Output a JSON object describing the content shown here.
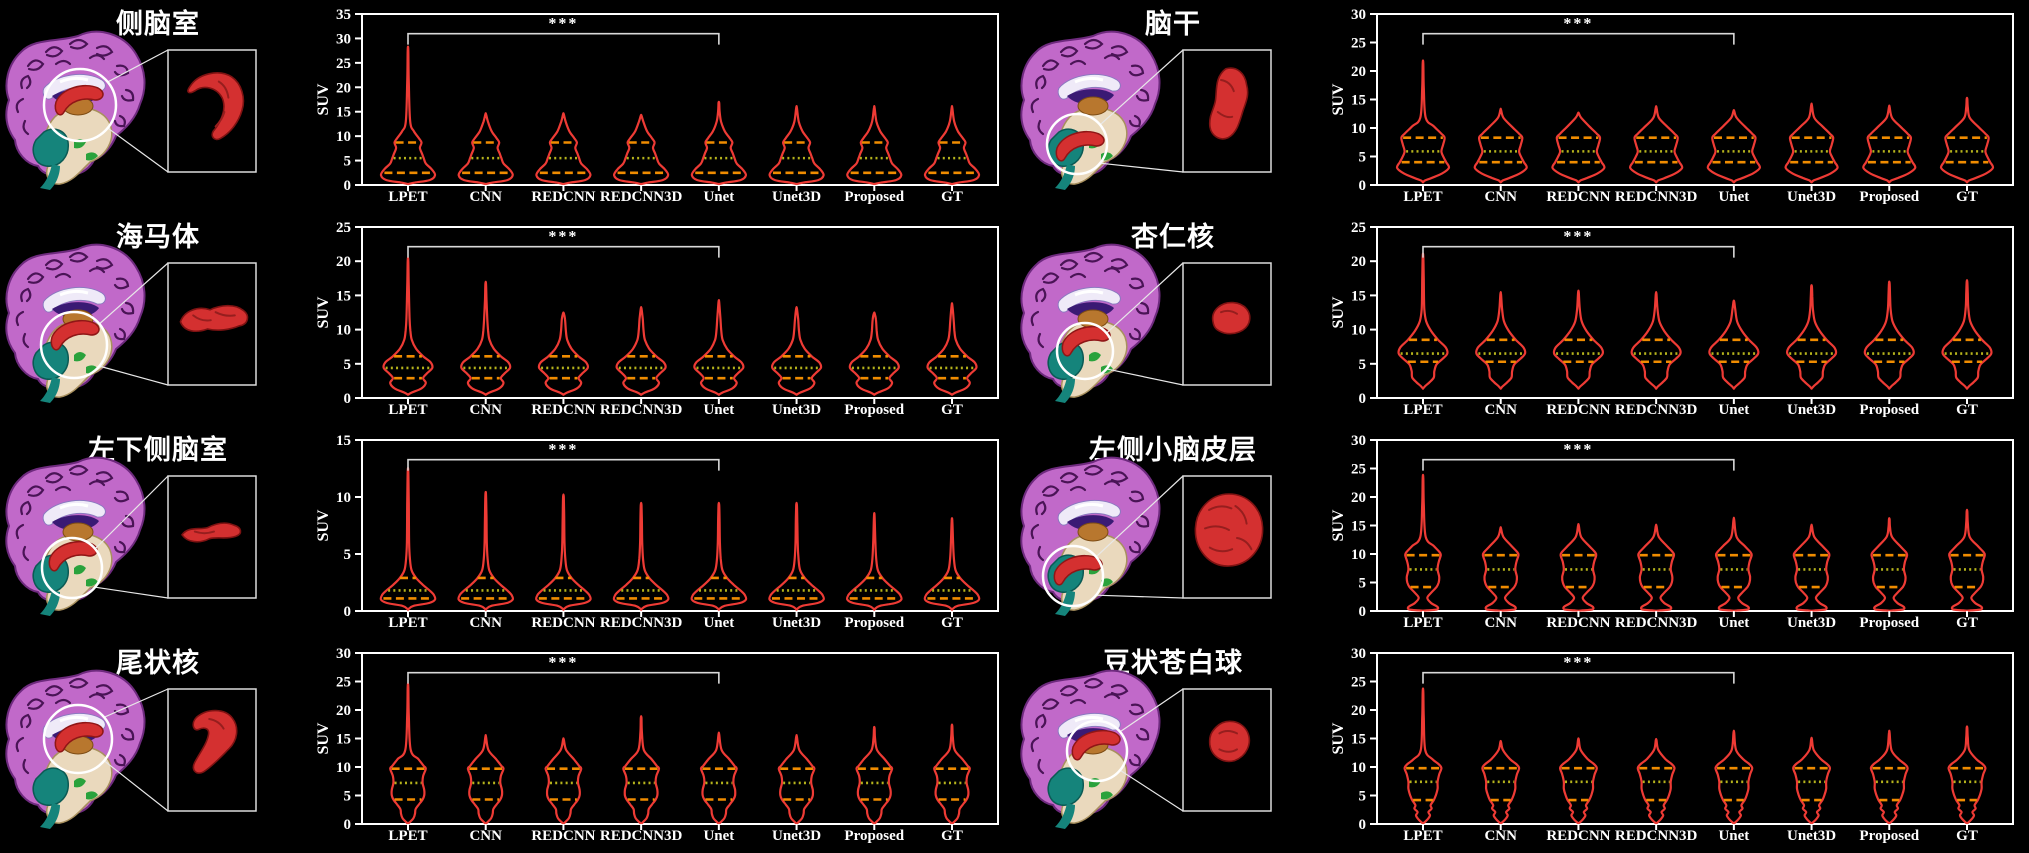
{
  "figure": {
    "background": "#000000",
    "methods": [
      "LPET",
      "CNN",
      "REDCNN",
      "REDCNN3D",
      "Unet",
      "Unet3D",
      "Proposed",
      "GT"
    ],
    "ylabel": "SUV",
    "significance_label": "***",
    "colors": {
      "violin": "#ee3b35",
      "quartile_lines": "#f08c00",
      "median_line": "#b5b31c",
      "axis_text": "#ffffff",
      "bracket": "#d9d9d9",
      "structure_highlight": "#d43030",
      "cortex": "#c169c9",
      "inset_border": "#dcdcdc"
    }
  },
  "chart_data": [
    {
      "type": "violin",
      "title": "侧脑室",
      "ylabel": "SUV",
      "ylim": [
        0,
        35
      ],
      "ytick_step": 5,
      "categories": [
        "LPET",
        "CNN",
        "REDCNN",
        "REDCNN3D",
        "Unet",
        "Unet3D",
        "Proposed",
        "GT"
      ],
      "max_values": [
        27.5,
        14.5,
        14.5,
        14.2,
        16.8,
        15.8,
        15.8,
        15.8
      ],
      "quartiles": {
        "q1": 2.5,
        "median": 5.5,
        "q3": 8.7
      },
      "annotation": {
        "label": "***",
        "from": "LPET",
        "to": "Unet"
      },
      "kde_profile": [
        [
          13,
          0.08
        ],
        [
          11,
          0.22
        ],
        [
          9.6,
          0.4
        ],
        [
          8.7,
          0.5
        ],
        [
          7.6,
          0.44
        ],
        [
          6.4,
          0.52
        ],
        [
          5.5,
          0.58
        ],
        [
          4.4,
          0.66
        ],
        [
          3.2,
          0.88
        ],
        [
          2,
          1.0
        ],
        [
          1,
          0.8
        ],
        [
          0.5,
          0.25
        ]
      ]
    },
    {
      "type": "violin",
      "title": "脑干",
      "ylabel": "SUV",
      "ylim": [
        0,
        30
      ],
      "ytick_step": 5,
      "categories": [
        "LPET",
        "CNN",
        "REDCNN",
        "REDCNN3D",
        "Unet",
        "Unet3D",
        "Proposed",
        "GT"
      ],
      "max_values": [
        21.3,
        13.2,
        12.6,
        13.6,
        13.0,
        14.0,
        13.7,
        15.1
      ],
      "quartiles": {
        "q1": 4.0,
        "median": 5.9,
        "q3": 8.3
      },
      "annotation": {
        "label": "***",
        "from": "LPET",
        "to": "Unet"
      },
      "kde_profile": [
        [
          11.8,
          0.1
        ],
        [
          10.3,
          0.4
        ],
        [
          9,
          0.68
        ],
        [
          8.3,
          0.8
        ],
        [
          7,
          0.74
        ],
        [
          5.9,
          0.68
        ],
        [
          4.9,
          0.76
        ],
        [
          4,
          0.86
        ],
        [
          3,
          0.96
        ],
        [
          2,
          0.7
        ],
        [
          1.2,
          0.3
        ],
        [
          0.8,
          0.08
        ]
      ]
    },
    {
      "type": "violin",
      "title": "海马体",
      "ylabel": "SUV",
      "ylim": [
        0,
        25
      ],
      "ytick_step": 5,
      "categories": [
        "LPET",
        "CNN",
        "REDCNN",
        "REDCNN3D",
        "Unet",
        "Unet3D",
        "Proposed",
        "GT"
      ],
      "max_values": [
        20.0,
        16.7,
        12.4,
        13.1,
        14.0,
        13.1,
        12.4,
        13.6
      ],
      "quartiles": {
        "q1": 2.9,
        "median": 4.4,
        "q3": 6.1
      },
      "annotation": {
        "label": "***",
        "from": "LPET",
        "to": "Unet"
      },
      "kde_profile": [
        [
          11.5,
          0.06
        ],
        [
          9.8,
          0.09
        ],
        [
          8.5,
          0.14
        ],
        [
          7.2,
          0.3
        ],
        [
          6.1,
          0.56
        ],
        [
          5.2,
          0.84
        ],
        [
          4.4,
          0.9
        ],
        [
          3.6,
          0.7
        ],
        [
          2.9,
          0.56
        ],
        [
          2.2,
          0.66
        ],
        [
          1.4,
          0.5
        ],
        [
          0.8,
          0.14
        ]
      ]
    },
    {
      "type": "violin",
      "title": "杏仁核",
      "ylabel": "SUV",
      "ylim": [
        0,
        25
      ],
      "ytick_step": 5,
      "categories": [
        "LPET",
        "CNN",
        "REDCNN",
        "REDCNN3D",
        "Unet",
        "Unet3D",
        "Proposed",
        "GT"
      ],
      "max_values": [
        20.7,
        15.2,
        15.4,
        15.2,
        14.1,
        16.3,
        16.8,
        17.0
      ],
      "quartiles": {
        "q1": 5.3,
        "median": 6.5,
        "q3": 8.5
      },
      "annotation": {
        "label": "***",
        "from": "LPET",
        "to": "Unet"
      },
      "kde_profile": [
        [
          13,
          0.05
        ],
        [
          11.2,
          0.12
        ],
        [
          9.8,
          0.3
        ],
        [
          8.5,
          0.56
        ],
        [
          7.4,
          0.84
        ],
        [
          6.5,
          0.9
        ],
        [
          5.7,
          0.72
        ],
        [
          4.9,
          0.5
        ],
        [
          3.9,
          0.42
        ],
        [
          3,
          0.4
        ],
        [
          2.3,
          0.24
        ],
        [
          1.7,
          0.07
        ]
      ]
    },
    {
      "type": "violin",
      "title": "左下侧脑室",
      "ylabel": "SUV",
      "ylim": [
        0,
        15
      ],
      "ytick_step": 5,
      "categories": [
        "LPET",
        "CNN",
        "REDCNN",
        "REDCNN3D",
        "Unet",
        "Unet3D",
        "Proposed",
        "GT"
      ],
      "max_values": [
        12.2,
        10.2,
        10.0,
        9.3,
        9.3,
        9.3,
        8.3,
        7.9
      ],
      "quartiles": {
        "q1": 1.1,
        "median": 1.8,
        "q3": 2.9
      },
      "annotation": {
        "label": "***",
        "from": "LPET",
        "to": "Unet"
      },
      "kde_profile": [
        [
          6,
          0.04
        ],
        [
          4.6,
          0.07
        ],
        [
          3.6,
          0.13
        ],
        [
          2.9,
          0.3
        ],
        [
          2.3,
          0.55
        ],
        [
          1.8,
          0.8
        ],
        [
          1.4,
          0.96
        ],
        [
          1,
          1.0
        ],
        [
          0.7,
          0.78
        ],
        [
          0.45,
          0.2
        ]
      ]
    },
    {
      "type": "violin",
      "title": "左侧小脑皮层",
      "ylabel": "SUV",
      "ylim": [
        0,
        30
      ],
      "ytick_step": 5,
      "categories": [
        "LPET",
        "CNN",
        "REDCNN",
        "REDCNN3D",
        "Unet",
        "Unet3D",
        "Proposed",
        "GT"
      ],
      "max_values": [
        23.3,
        14.5,
        15.0,
        14.9,
        16.0,
        14.9,
        16.1,
        17.5
      ],
      "quartiles": {
        "q1": 4.2,
        "median": 7.3,
        "q3": 9.8
      },
      "annotation": {
        "label": "***",
        "from": "LPET",
        "to": "Unet"
      },
      "kde_profile": [
        [
          13,
          0.1
        ],
        [
          11.4,
          0.4
        ],
        [
          10.4,
          0.6
        ],
        [
          9.8,
          0.66
        ],
        [
          8.6,
          0.58
        ],
        [
          7.3,
          0.54
        ],
        [
          6,
          0.6
        ],
        [
          5,
          0.58
        ],
        [
          4.2,
          0.5
        ],
        [
          3.2,
          0.3
        ],
        [
          2.3,
          0.16
        ],
        [
          1.4,
          0.3
        ],
        [
          0.7,
          0.54
        ],
        [
          0.25,
          0.5
        ],
        [
          0.1,
          0.15
        ]
      ]
    },
    {
      "type": "violin",
      "title": "尾状核",
      "ylabel": "SUV",
      "ylim": [
        0,
        30
      ],
      "ytick_step": 5,
      "categories": [
        "LPET",
        "CNN",
        "REDCNN",
        "REDCNN3D",
        "Unet",
        "Unet3D",
        "Proposed",
        "GT"
      ],
      "max_values": [
        24.0,
        15.3,
        14.8,
        18.6,
        15.7,
        15.3,
        16.8,
        17.2
      ],
      "quartiles": {
        "q1": 4.3,
        "median": 7.2,
        "q3": 9.7
      },
      "annotation": {
        "label": "***",
        "from": "LPET",
        "to": "Unet"
      },
      "kde_profile": [
        [
          13,
          0.1
        ],
        [
          11.4,
          0.38
        ],
        [
          10.2,
          0.58
        ],
        [
          9.7,
          0.66
        ],
        [
          8.4,
          0.56
        ],
        [
          7.2,
          0.54
        ],
        [
          6,
          0.6
        ],
        [
          5,
          0.6
        ],
        [
          4.3,
          0.54
        ],
        [
          3.4,
          0.4
        ],
        [
          2.6,
          0.28
        ],
        [
          1.8,
          0.26
        ],
        [
          1,
          0.2
        ],
        [
          0.3,
          0.06
        ]
      ]
    },
    {
      "type": "violin",
      "title": "豆状苍白球",
      "ylabel": "SUV",
      "ylim": [
        0,
        30
      ],
      "ytick_step": 5,
      "categories": [
        "LPET",
        "CNN",
        "REDCNN",
        "REDCNN3D",
        "Unet",
        "Unet3D",
        "Proposed",
        "GT"
      ],
      "max_values": [
        23.2,
        14.4,
        14.8,
        14.7,
        16.0,
        14.9,
        16.0,
        16.9
      ],
      "quartiles": {
        "q1": 4.2,
        "median": 7.4,
        "q3": 9.8
      },
      "annotation": {
        "label": "***",
        "from": "LPET",
        "to": "Unet"
      },
      "kde_profile": [
        [
          13,
          0.08
        ],
        [
          11.4,
          0.34
        ],
        [
          10.5,
          0.58
        ],
        [
          9.8,
          0.68
        ],
        [
          8.7,
          0.6
        ],
        [
          7.4,
          0.54
        ],
        [
          6.2,
          0.54
        ],
        [
          5.1,
          0.48
        ],
        [
          4.2,
          0.4
        ],
        [
          3.3,
          0.28
        ],
        [
          2.7,
          0.32
        ],
        [
          2.1,
          0.2
        ],
        [
          1.5,
          0.26
        ],
        [
          0.9,
          0.18
        ],
        [
          0.4,
          0.08
        ]
      ]
    }
  ]
}
